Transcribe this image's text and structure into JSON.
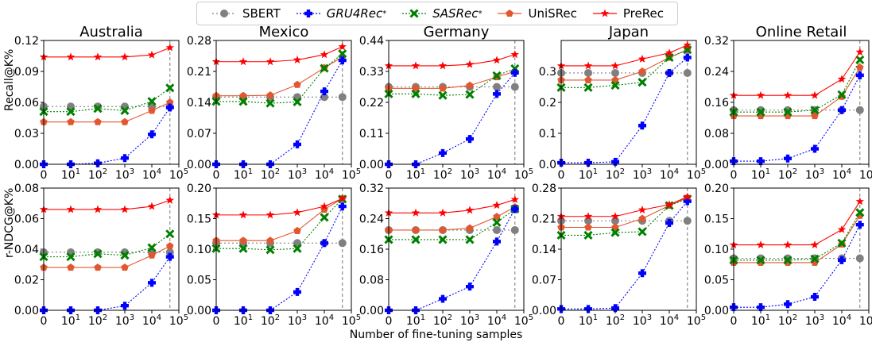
{
  "legend": [
    {
      "name": "SBERT",
      "italic": false,
      "color": "#808080",
      "marker": "circle",
      "dash": "2,3"
    },
    {
      "name": "GRU4Rec",
      "italic": true,
      "sup": "*",
      "color": "#0000ff",
      "marker": "plus",
      "dash": "2,2"
    },
    {
      "name": "SASRec",
      "italic": true,
      "sup": "*",
      "color": "#008000",
      "marker": "x",
      "dash": "2,2"
    },
    {
      "name": "UniSRec",
      "italic": false,
      "color": "#e2572f",
      "marker": "pentagon",
      "dash": ""
    },
    {
      "name": "PreRec",
      "italic": false,
      "color": "#ff0000",
      "marker": "star",
      "dash": ""
    }
  ],
  "xlabel": "Number of fine-tuning samples",
  "row_ylabels": [
    "Recall@K%",
    "r-NDCG@K%"
  ],
  "chart_data": {
    "type": "line",
    "x_tick_labels": [
      "0",
      "10^1",
      "10^2",
      "10^3",
      "10^4",
      "10^5"
    ],
    "x_points": [
      0,
      1,
      2,
      3,
      4,
      4.67
    ],
    "dashed_vline_at": 4.67,
    "grid": false,
    "panels": [
      {
        "title": "Australia",
        "row": 0,
        "ylim": [
          0,
          0.12
        ],
        "yticks": [
          "0.00",
          "0.03",
          "0.06",
          "0.09",
          "0.12"
        ],
        "series": {
          "SBERT": [
            0.056,
            0.056,
            0.056,
            0.056,
            0.056,
            0.056
          ],
          "GRU4Rec": [
            0.0,
            0.0,
            0.001,
            0.006,
            0.029,
            0.055
          ],
          "SASRec": [
            0.051,
            0.051,
            0.054,
            0.052,
            0.061,
            0.074
          ],
          "UniSRec": [
            0.041,
            0.041,
            0.041,
            0.041,
            0.052,
            0.06
          ],
          "PreRec": [
            0.104,
            0.104,
            0.104,
            0.104,
            0.106,
            0.113
          ]
        }
      },
      {
        "title": "Mexico",
        "row": 0,
        "ylim": [
          0,
          0.28
        ],
        "yticks": [
          "0.00",
          "0.07",
          "0.14",
          "0.21",
          "0.28"
        ],
        "series": {
          "SBERT": [
            0.152,
            0.152,
            0.152,
            0.152,
            0.152,
            0.152
          ],
          "GRU4Rec": [
            0.0,
            0.0,
            0.0,
            0.045,
            0.165,
            0.235
          ],
          "SASRec": [
            0.142,
            0.142,
            0.138,
            0.141,
            0.217,
            0.25
          ],
          "UniSRec": [
            0.155,
            0.155,
            0.156,
            0.18,
            0.218,
            0.243
          ],
          "PreRec": [
            0.232,
            0.232,
            0.232,
            0.236,
            0.248,
            0.266
          ]
        }
      },
      {
        "title": "Germany",
        "row": 0,
        "ylim": [
          0,
          0.44
        ],
        "yticks": [
          "0.00",
          "0.11",
          "0.22",
          "0.33",
          "0.44"
        ],
        "series": {
          "SBERT": [
            0.275,
            0.275,
            0.275,
            0.275,
            0.275,
            0.275
          ],
          "GRU4Rec": [
            0.0,
            0.0,
            0.04,
            0.09,
            0.25,
            0.325
          ],
          "SASRec": [
            0.25,
            0.25,
            0.245,
            0.248,
            0.315,
            0.34
          ],
          "UniSRec": [
            0.27,
            0.27,
            0.27,
            0.28,
            0.31,
            0.33
          ],
          "PreRec": [
            0.35,
            0.35,
            0.35,
            0.355,
            0.37,
            0.39
          ]
        }
      },
      {
        "title": "Japan",
        "row": 0,
        "ylim": [
          0,
          0.4
        ],
        "yticks": [
          "0.0",
          "0.1",
          "0.2",
          "0.3"
        ],
        "series": {
          "SBERT": [
            0.295,
            0.295,
            0.295,
            0.295,
            0.295,
            0.295
          ],
          "GRU4Rec": [
            0.005,
            0.005,
            0.008,
            0.125,
            0.295,
            0.345
          ],
          "SASRec": [
            0.248,
            0.248,
            0.255,
            0.265,
            0.345,
            0.37
          ],
          "UniSRec": [
            0.272,
            0.272,
            0.272,
            0.3,
            0.345,
            0.37
          ],
          "PreRec": [
            0.318,
            0.318,
            0.318,
            0.34,
            0.36,
            0.385
          ]
        }
      },
      {
        "title": "Online Retail",
        "row": 0,
        "ylim": [
          0,
          0.32
        ],
        "yticks": [
          "0.00",
          "0.08",
          "0.16",
          "0.24",
          "0.32"
        ],
        "series": {
          "SBERT": [
            0.14,
            0.14,
            0.14,
            0.14,
            0.14,
            0.14
          ],
          "GRU4Rec": [
            0.008,
            0.008,
            0.015,
            0.04,
            0.14,
            0.23
          ],
          "SASRec": [
            0.135,
            0.135,
            0.135,
            0.14,
            0.18,
            0.27
          ],
          "UniSRec": [
            0.125,
            0.125,
            0.125,
            0.125,
            0.175,
            0.25
          ],
          "PreRec": [
            0.178,
            0.178,
            0.178,
            0.178,
            0.22,
            0.29
          ]
        }
      },
      {
        "title": "",
        "row": 1,
        "ylim": [
          0,
          0.08
        ],
        "yticks": [
          "0.00",
          "0.02",
          "0.04",
          "0.06",
          "0.08"
        ],
        "series": {
          "SBERT": [
            0.038,
            0.038,
            0.038,
            0.038,
            0.038,
            0.038
          ],
          "GRU4Rec": [
            0.0,
            0.0,
            0.0,
            0.003,
            0.018,
            0.035
          ],
          "SASRec": [
            0.035,
            0.035,
            0.037,
            0.036,
            0.041,
            0.05
          ],
          "UniSRec": [
            0.028,
            0.028,
            0.028,
            0.028,
            0.036,
            0.042
          ],
          "PreRec": [
            0.066,
            0.066,
            0.066,
            0.066,
            0.068,
            0.072
          ]
        }
      },
      {
        "title": "",
        "row": 1,
        "ylim": [
          0,
          0.2
        ],
        "yticks": [
          "0.00",
          "0.05",
          "0.10",
          "0.15",
          "0.20"
        ],
        "series": {
          "SBERT": [
            0.11,
            0.11,
            0.11,
            0.11,
            0.11,
            0.11
          ],
          "GRU4Rec": [
            0.0,
            0.0,
            0.0,
            0.03,
            0.11,
            0.17
          ],
          "SASRec": [
            0.101,
            0.101,
            0.099,
            0.101,
            0.152,
            0.182
          ],
          "UniSRec": [
            0.114,
            0.114,
            0.114,
            0.13,
            0.165,
            0.183
          ],
          "PreRec": [
            0.156,
            0.156,
            0.156,
            0.16,
            0.17,
            0.183
          ]
        }
      },
      {
        "title": "",
        "row": 1,
        "ylim": [
          0,
          0.32
        ],
        "yticks": [
          "0.00",
          "0.08",
          "0.16",
          "0.24",
          "0.32"
        ],
        "series": {
          "SBERT": [
            0.21,
            0.21,
            0.21,
            0.21,
            0.21,
            0.21
          ],
          "GRU4Rec": [
            0.0,
            0.0,
            0.03,
            0.062,
            0.18,
            0.265
          ],
          "SASRec": [
            0.185,
            0.185,
            0.185,
            0.185,
            0.23,
            0.265
          ],
          "UniSRec": [
            0.21,
            0.21,
            0.21,
            0.215,
            0.245,
            0.27
          ],
          "PreRec": [
            0.255,
            0.255,
            0.255,
            0.262,
            0.275,
            0.29
          ]
        }
      },
      {
        "title": "",
        "row": 1,
        "ylim": [
          0,
          0.28
        ],
        "yticks": [
          "0.00",
          "0.07",
          "0.14",
          "0.21",
          "0.28"
        ],
        "series": {
          "SBERT": [
            0.205,
            0.205,
            0.205,
            0.205,
            0.205,
            0.205
          ],
          "GRU4Rec": [
            0.003,
            0.003,
            0.005,
            0.085,
            0.2,
            0.25
          ],
          "SASRec": [
            0.172,
            0.172,
            0.178,
            0.18,
            0.24,
            0.255
          ],
          "UniSRec": [
            0.19,
            0.19,
            0.19,
            0.21,
            0.24,
            0.258
          ],
          "PreRec": [
            0.215,
            0.215,
            0.215,
            0.23,
            0.242,
            0.26
          ]
        }
      },
      {
        "title": "",
        "row": 1,
        "ylim": [
          0,
          0.2
        ],
        "yticks": [
          "0.00",
          "0.05",
          "0.10",
          "0.15",
          "0.20"
        ],
        "series": {
          "SBERT": [
            0.085,
            0.085,
            0.085,
            0.085,
            0.085,
            0.085
          ],
          "GRU4Rec": [
            0.005,
            0.005,
            0.01,
            0.022,
            0.082,
            0.14
          ],
          "SASRec": [
            0.082,
            0.082,
            0.082,
            0.084,
            0.11,
            0.16
          ],
          "UniSRec": [
            0.078,
            0.078,
            0.078,
            0.078,
            0.108,
            0.155
          ],
          "PreRec": [
            0.107,
            0.107,
            0.107,
            0.107,
            0.132,
            0.178
          ]
        }
      }
    ]
  }
}
